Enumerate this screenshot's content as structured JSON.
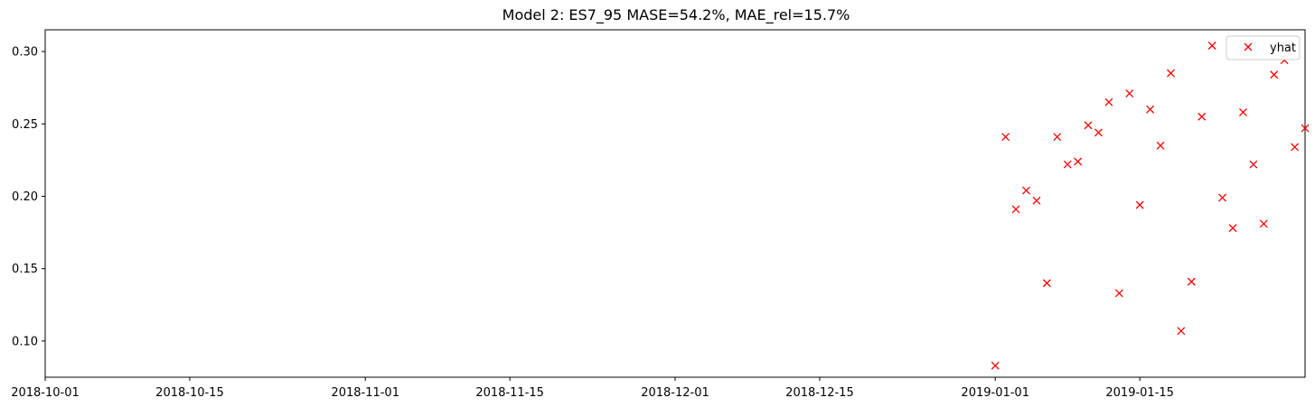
{
  "chart_data": {
    "type": "scatter",
    "title": "Model 2: ES7_95 MASE=54.2%, MAE_rel=15.7%",
    "xlabel": "",
    "ylabel": "",
    "x_axis_type": "date",
    "xlim": [
      "2018-10-01",
      "2019-01-31"
    ],
    "ylim": [
      0.075,
      0.315
    ],
    "x_ticks": [
      "2018-10-01",
      "2018-10-15",
      "2018-11-01",
      "2018-11-15",
      "2018-12-01",
      "2018-12-15",
      "2019-01-01",
      "2019-01-15"
    ],
    "y_ticks": [
      "0.10",
      "0.15",
      "0.20",
      "0.25",
      "0.30"
    ],
    "grid": false,
    "legend": {
      "position": "top-right"
    },
    "series": [
      {
        "name": "yhat",
        "marker": "x",
        "color": "#ff0000",
        "points": [
          {
            "x": "2019-01-01",
            "y": 0.083
          },
          {
            "x": "2019-01-02",
            "y": 0.241
          },
          {
            "x": "2019-01-03",
            "y": 0.191
          },
          {
            "x": "2019-01-04",
            "y": 0.204
          },
          {
            "x": "2019-01-05",
            "y": 0.197
          },
          {
            "x": "2019-01-06",
            "y": 0.14
          },
          {
            "x": "2019-01-07",
            "y": 0.241
          },
          {
            "x": "2019-01-08",
            "y": 0.222
          },
          {
            "x": "2019-01-09",
            "y": 0.224
          },
          {
            "x": "2019-01-10",
            "y": 0.249
          },
          {
            "x": "2019-01-11",
            "y": 0.244
          },
          {
            "x": "2019-01-12",
            "y": 0.265
          },
          {
            "x": "2019-01-13",
            "y": 0.133
          },
          {
            "x": "2019-01-14",
            "y": 0.271
          },
          {
            "x": "2019-01-15",
            "y": 0.194
          },
          {
            "x": "2019-01-16",
            "y": 0.26
          },
          {
            "x": "2019-01-17",
            "y": 0.235
          },
          {
            "x": "2019-01-18",
            "y": 0.285
          },
          {
            "x": "2019-01-19",
            "y": 0.107
          },
          {
            "x": "2019-01-20",
            "y": 0.141
          },
          {
            "x": "2019-01-21",
            "y": 0.255
          },
          {
            "x": "2019-01-22",
            "y": 0.304
          },
          {
            "x": "2019-01-23",
            "y": 0.199
          },
          {
            "x": "2019-01-24",
            "y": 0.178
          },
          {
            "x": "2019-01-25",
            "y": 0.258
          },
          {
            "x": "2019-01-26",
            "y": 0.222
          },
          {
            "x": "2019-01-27",
            "y": 0.181
          },
          {
            "x": "2019-01-28",
            "y": 0.284
          },
          {
            "x": "2019-01-29",
            "y": 0.294
          },
          {
            "x": "2019-01-30",
            "y": 0.234
          },
          {
            "x": "2019-01-31",
            "y": 0.247
          }
        ]
      }
    ]
  }
}
